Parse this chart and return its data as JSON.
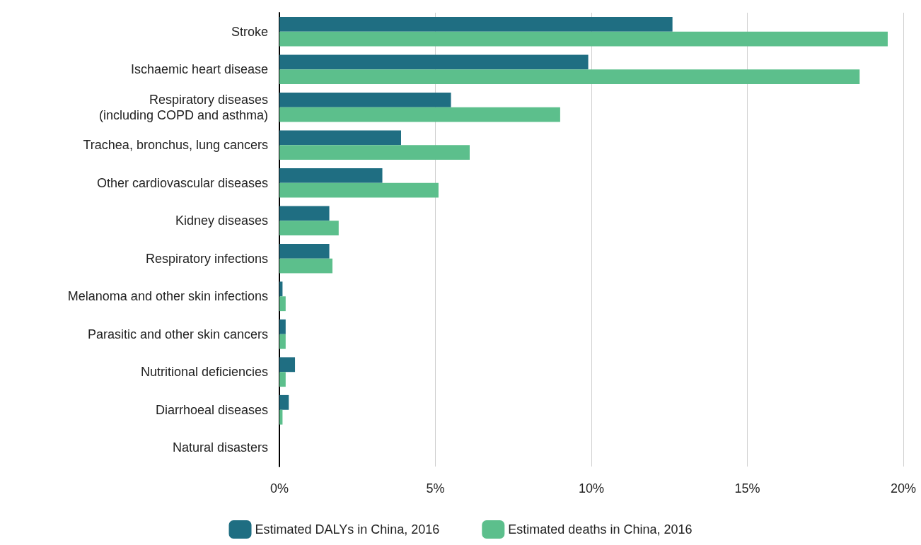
{
  "chart_data": {
    "type": "bar",
    "orientation": "horizontal",
    "categories": [
      "Stroke",
      "Ischaemic heart disease",
      "Respiratory diseases\n(including COPD and asthma)",
      "Trachea, bronchus, lung cancers",
      "Other cardiovascular diseases",
      "Kidney diseases",
      "Respiratory infections",
      "Melanoma and other skin infections",
      "Parasitic and other skin cancers",
      "Nutritional deficiencies",
      "Diarrhoeal diseases",
      "Natural disasters"
    ],
    "series": [
      {
        "name": "Estimated DALYs in China, 2016",
        "color": "#1f6e82",
        "values": [
          12.6,
          9.9,
          5.5,
          3.9,
          3.3,
          1.6,
          1.6,
          0.1,
          0.2,
          0.5,
          0.3,
          0
        ]
      },
      {
        "name": "Estimated deaths in China, 2016",
        "color": "#5cbf8c",
        "values": [
          19.5,
          18.6,
          9.0,
          6.1,
          5.1,
          1.9,
          1.7,
          0.2,
          0.2,
          0.2,
          0.1,
          0
        ]
      }
    ],
    "xlim": [
      0,
      20
    ],
    "xticks": [
      {
        "value": 0,
        "label": "0%"
      },
      {
        "value": 5,
        "label": "5%"
      },
      {
        "value": 10,
        "label": "10%"
      },
      {
        "value": 15,
        "label": "15%"
      },
      {
        "value": 20,
        "label": "20%"
      }
    ],
    "grid": "x",
    "legend": "bottom"
  }
}
